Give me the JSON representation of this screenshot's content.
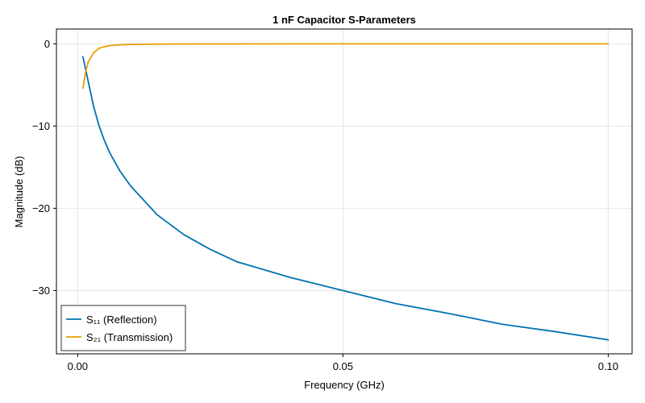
{
  "chart_data": {
    "type": "line",
    "title": "1 nF Capacitor S-Parameters",
    "xlabel": "Frequency (GHz)",
    "ylabel": "Magnitude (dB)",
    "xlim": [
      -0.004,
      0.1045
    ],
    "ylim": [
      -37.7,
      1.8
    ],
    "xticks": [
      0.0,
      0.05,
      0.1
    ],
    "xtick_labels": [
      "0.00",
      "0.05",
      "0.10"
    ],
    "yticks": [
      0,
      -10,
      -20,
      -30
    ],
    "ytick_labels": [
      "0",
      "−10",
      "−20",
      "−30"
    ],
    "grid": true,
    "legend_position": "bottom-left",
    "series": [
      {
        "name": "S₁₁ (Reflection)",
        "color": "#0072b2",
        "x": [
          0.001,
          0.002,
          0.003,
          0.004,
          0.005,
          0.006,
          0.008,
          0.01,
          0.015,
          0.02,
          0.025,
          0.03,
          0.04,
          0.05,
          0.06,
          0.07,
          0.08,
          0.09,
          0.1
        ],
        "values": [
          -1.6,
          -4.6,
          -7.6,
          -9.9,
          -11.7,
          -13.2,
          -15.5,
          -17.3,
          -20.8,
          -23.2,
          -25.0,
          -26.5,
          -28.4,
          -30.0,
          -31.6,
          -32.8,
          -34.1,
          -35.0,
          -36.0
        ]
      },
      {
        "name": "S₂₁ (Transmission)",
        "color": "#e69f00",
        "x": [
          0.001,
          0.0015,
          0.002,
          0.003,
          0.004,
          0.005,
          0.006,
          0.008,
          0.01,
          0.015,
          0.02,
          0.03,
          0.05,
          0.07,
          0.1
        ],
        "values": [
          -5.4,
          -3.4,
          -2.2,
          -1.1,
          -0.55,
          -0.35,
          -0.22,
          -0.12,
          -0.08,
          -0.04,
          -0.02,
          -0.01,
          0,
          0,
          0
        ]
      }
    ]
  }
}
